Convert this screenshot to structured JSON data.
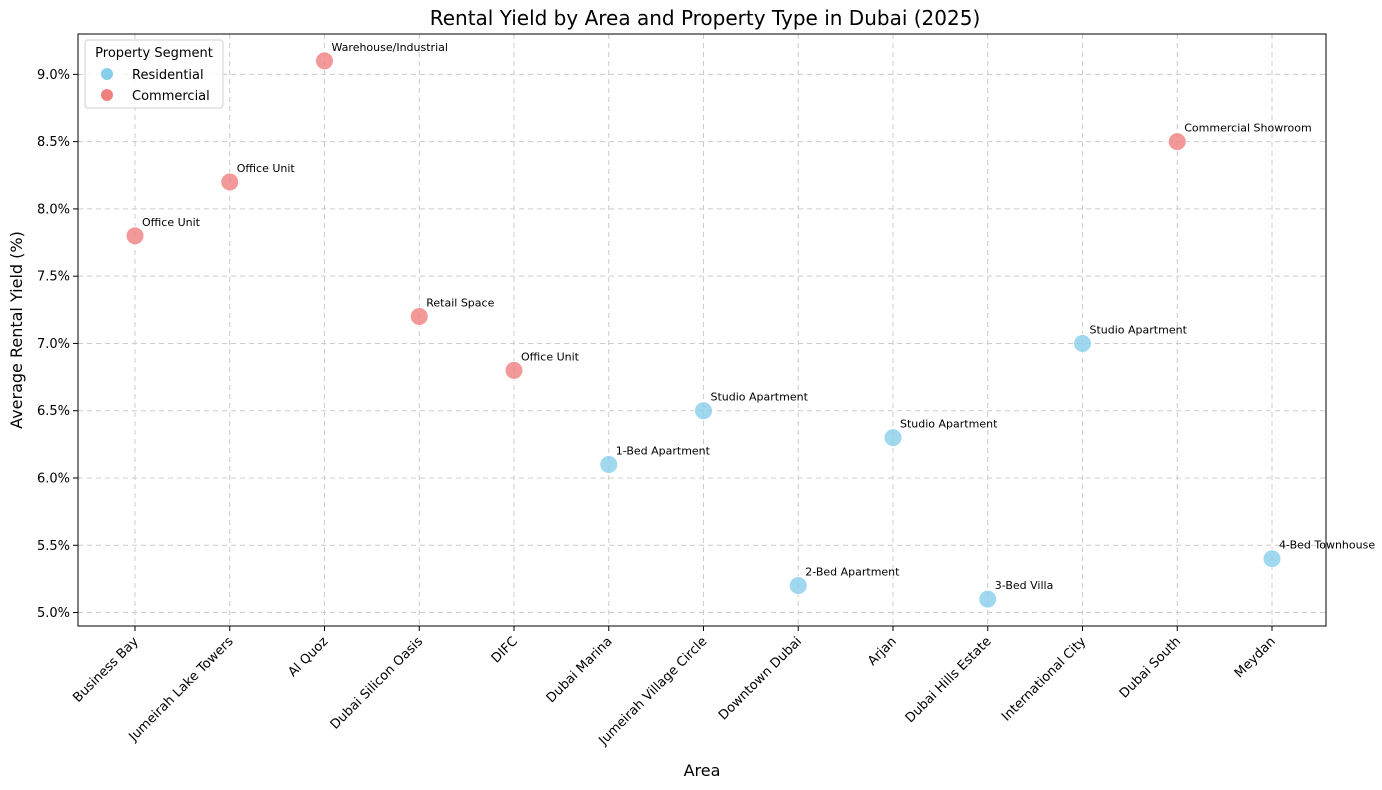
{
  "chart_data": {
    "type": "scatter",
    "title": "Rental Yield by Area and Property Type in Dubai (2025)",
    "xlabel": "Area",
    "ylabel": "Average Rental Yield (%)",
    "ylim": [
      4.9,
      9.3
    ],
    "yticks": [
      5.0,
      5.5,
      6.0,
      6.5,
      7.0,
      7.5,
      8.0,
      8.5,
      9.0
    ],
    "ytick_labels": [
      "5.0%",
      "5.5%",
      "6.0%",
      "6.5%",
      "7.0%",
      "7.5%",
      "8.0%",
      "8.5%",
      "9.0%"
    ],
    "grid": true,
    "categories": [
      "Business Bay",
      "Jumeirah Lake Towers",
      "Al Quoz",
      "Dubai Silicon Oasis",
      "DIFC",
      "Dubai Marina",
      "Jumeirah Village Circle",
      "Downtown Dubai",
      "Arjan",
      "Dubai Hills Estate",
      "International City",
      "Dubai South",
      "Meydan"
    ],
    "legend": {
      "title": "Property Segment",
      "placement": "top-left",
      "entries": [
        {
          "label": "Residential",
          "color": "#87CEEB"
        },
        {
          "label": "Commercial",
          "color": "#F08080"
        }
      ]
    },
    "points": [
      {
        "area": "Business Bay",
        "yield": 7.8,
        "segment": "Commercial",
        "label": "Office Unit"
      },
      {
        "area": "Jumeirah Lake Towers",
        "yield": 8.2,
        "segment": "Commercial",
        "label": "Office Unit"
      },
      {
        "area": "Al Quoz",
        "yield": 9.1,
        "segment": "Commercial",
        "label": "Warehouse/Industrial"
      },
      {
        "area": "Dubai Silicon Oasis",
        "yield": 7.2,
        "segment": "Commercial",
        "label": "Retail Space"
      },
      {
        "area": "DIFC",
        "yield": 6.8,
        "segment": "Commercial",
        "label": "Office Unit"
      },
      {
        "area": "Dubai Marina",
        "yield": 6.1,
        "segment": "Residential",
        "label": "1-Bed Apartment"
      },
      {
        "area": "Jumeirah Village Circle",
        "yield": 6.5,
        "segment": "Residential",
        "label": "Studio Apartment"
      },
      {
        "area": "Downtown Dubai",
        "yield": 5.2,
        "segment": "Residential",
        "label": "2-Bed Apartment"
      },
      {
        "area": "Arjan",
        "yield": 6.3,
        "segment": "Residential",
        "label": "Studio Apartment"
      },
      {
        "area": "Dubai Hills Estate",
        "yield": 5.1,
        "segment": "Residential",
        "label": "3-Bed Villa"
      },
      {
        "area": "International City",
        "yield": 7.0,
        "segment": "Residential",
        "label": "Studio Apartment"
      },
      {
        "area": "Dubai South",
        "yield": 8.5,
        "segment": "Commercial",
        "label": "Commercial Showroom"
      },
      {
        "area": "Meydan",
        "yield": 5.4,
        "segment": "Residential",
        "label": "4-Bed Townhouse"
      }
    ]
  }
}
